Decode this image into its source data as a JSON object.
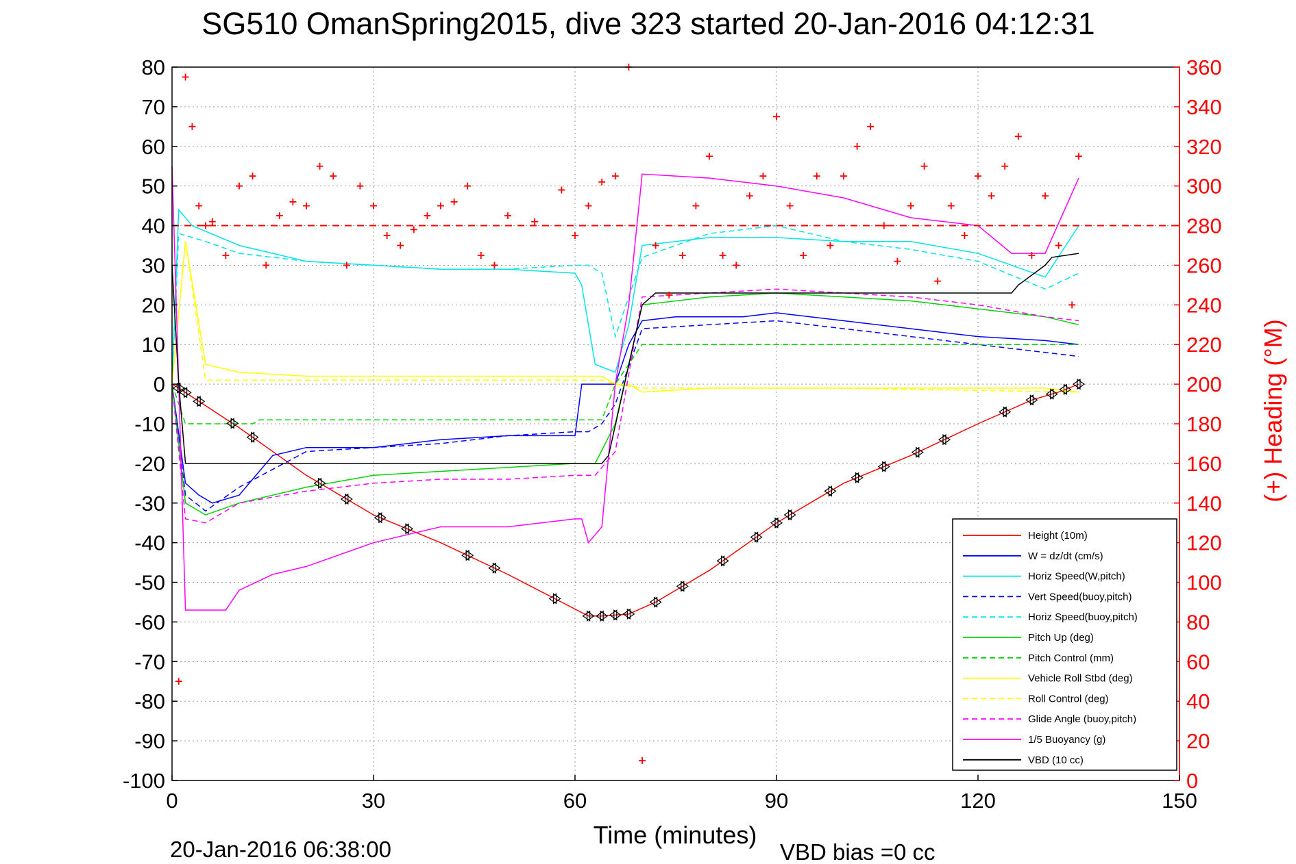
{
  "chart_data": {
    "type": "line",
    "title": "SG510 OmanSpring2015, dive 323 started 20-Jan-2016 04:12:31",
    "xlabel": "Time (minutes)",
    "ylabel": "",
    "y2label": "(+) Heading (°M)",
    "footer_left": "20-Jan-2016 06:38:00",
    "footer_right": "VBD bias =0 cc",
    "xlim": [
      0,
      150
    ],
    "ylim": [
      -100,
      80
    ],
    "y2lim": [
      0,
      360
    ],
    "xticks": [
      "0",
      "30",
      "60",
      "90",
      "120",
      "150"
    ],
    "yticks": [
      "80",
      "70",
      "60",
      "50",
      "40",
      "30",
      "20",
      "10",
      "0",
      "-10",
      "-20",
      "-30",
      "-40",
      "-50",
      "-60",
      "-70",
      "-80",
      "-90",
      "-100"
    ],
    "y2ticks": [
      "360",
      "340",
      "320",
      "300",
      "280",
      "260",
      "240",
      "220",
      "200",
      "180",
      "160",
      "140",
      "120",
      "100",
      "80",
      "60",
      "40",
      "20",
      "0"
    ],
    "grid": true,
    "legend_position": "bottom-right",
    "reference_heading": 280,
    "colors": {
      "red": "#ff0000",
      "blue": "#0000ff",
      "cyan": "#00e5e5",
      "green": "#00d400",
      "yellow": "#ffff00",
      "magenta": "#ff00ff",
      "black": "#000000"
    },
    "series": [
      {
        "name": "Height (10m)",
        "color": "#ff0000",
        "dash": "solid",
        "x": [
          0,
          1,
          10,
          20,
          30,
          40,
          50,
          58,
          62,
          64,
          68,
          72,
          80,
          90,
          100,
          110,
          120,
          128,
          132,
          135
        ],
        "y": [
          0,
          -1,
          -11,
          -23,
          -33,
          -40,
          -48,
          -55,
          -58.5,
          -58.5,
          -58,
          -55,
          -47,
          -35,
          -25,
          -18,
          -10,
          -4,
          -2,
          0
        ]
      },
      {
        "name": "W = dz/dt (cm/s)",
        "color": "#0000ff",
        "dash": "solid",
        "x": [
          0,
          2,
          4,
          6,
          10,
          15,
          20,
          30,
          40,
          50,
          60,
          61,
          63,
          65,
          66,
          68,
          70,
          75,
          85,
          90,
          100,
          110,
          120,
          130,
          135
        ],
        "y": [
          0,
          -25,
          -28,
          -30,
          -28,
          -18,
          -16,
          -16,
          -14,
          -13,
          -13,
          0,
          0,
          0,
          0,
          10,
          16,
          17,
          17,
          18,
          16,
          14,
          12,
          11,
          10
        ]
      },
      {
        "name": "Horiz Speed(W,pitch)",
        "color": "#00e5e5",
        "dash": "solid",
        "x": [
          0,
          1,
          3,
          10,
          20,
          30,
          40,
          50,
          60,
          61,
          63,
          66,
          68,
          70,
          80,
          90,
          100,
          110,
          120,
          125,
          130,
          135
        ],
        "y": [
          0,
          44,
          40,
          35,
          31,
          30,
          29,
          29,
          28,
          25,
          5,
          3,
          15,
          35,
          37,
          37,
          36,
          36,
          33,
          30,
          27,
          40
        ]
      },
      {
        "name": "Vert Speed(buoy,pitch)",
        "color": "#0000ff",
        "dash": "dashed",
        "x": [
          0,
          2,
          5,
          10,
          20,
          30,
          40,
          50,
          60,
          62,
          64,
          66,
          70,
          80,
          90,
          100,
          110,
          120,
          130,
          135
        ],
        "y": [
          0,
          -28,
          -32,
          -26,
          -17,
          -16,
          -15,
          -13,
          -12,
          -12,
          -10,
          -5,
          14,
          15,
          16,
          14,
          12,
          10,
          8,
          7
        ]
      },
      {
        "name": "Horiz Speed(buoy,pitch)",
        "color": "#00e5e5",
        "dash": "dashed",
        "x": [
          0,
          1,
          5,
          10,
          20,
          30,
          40,
          50,
          60,
          62,
          64,
          66,
          70,
          80,
          90,
          100,
          110,
          120,
          130,
          135
        ],
        "y": [
          0,
          38,
          36,
          33,
          31,
          30,
          29,
          29,
          30,
          30,
          28,
          12,
          32,
          38,
          40,
          36,
          34,
          31,
          24,
          28
        ]
      },
      {
        "name": "Pitch Up (deg)",
        "color": "#00d400",
        "dash": "solid",
        "x": [
          0,
          2,
          5,
          10,
          20,
          30,
          40,
          50,
          60,
          63,
          66,
          70,
          80,
          90,
          100,
          110,
          120,
          130,
          135
        ],
        "y": [
          0,
          -30,
          -33,
          -30,
          -26,
          -23,
          -22,
          -21,
          -20,
          -20,
          -10,
          20,
          22,
          23,
          22,
          21,
          19,
          17,
          15
        ]
      },
      {
        "name": "Pitch Control (mm)",
        "color": "#00d400",
        "dash": "dashed",
        "x": [
          0,
          2,
          12,
          13,
          62,
          64,
          66,
          70,
          135
        ],
        "y": [
          0,
          -10,
          -10,
          -9,
          -9,
          -9,
          0,
          10,
          10
        ]
      },
      {
        "name": "Vehicle Roll Stbd (deg)",
        "color": "#ffff00",
        "dash": "solid",
        "x": [
          0,
          2,
          5,
          10,
          20,
          30,
          40,
          50,
          60,
          64,
          66,
          68,
          70,
          80,
          90,
          100,
          110,
          120,
          130,
          135
        ],
        "y": [
          0,
          36,
          5,
          3,
          2,
          2,
          2,
          2,
          2,
          2,
          0,
          0,
          -2,
          -1,
          -1,
          -1,
          -1,
          -1,
          -1,
          -2
        ]
      },
      {
        "name": "Roll Control (deg)",
        "color": "#ffff00",
        "dash": "dashed",
        "x": [
          0,
          2,
          5,
          10,
          30,
          60,
          64,
          66,
          70,
          100,
          135
        ],
        "y": [
          0,
          36,
          1,
          1,
          1,
          1,
          1,
          0,
          -1,
          -1,
          -2
        ]
      },
      {
        "name": "Glide Angle (buoy,pitch)",
        "color": "#ff00ff",
        "dash": "dashed",
        "x": [
          0,
          2,
          5,
          10,
          20,
          30,
          40,
          50,
          60,
          63,
          66,
          70,
          80,
          90,
          100,
          110,
          120,
          130,
          135
        ],
        "y": [
          0,
          -34,
          -35,
          -30,
          -27,
          -25,
          -24,
          -24,
          -23,
          -23,
          -17,
          22,
          23,
          24,
          23,
          22,
          20,
          17,
          16
        ]
      },
      {
        "name": "1/5 Buoyancy (g)",
        "color": "#ff00ff",
        "dash": "solid",
        "x": [
          0,
          1,
          2,
          8,
          10,
          15,
          20,
          30,
          40,
          50,
          60,
          61,
          62,
          64,
          66,
          68,
          70,
          80,
          90,
          100,
          110,
          120,
          125,
          130,
          135
        ],
        "y": [
          55,
          0,
          -57,
          -57,
          -52,
          -48,
          -46,
          -40,
          -36,
          -36,
          -34,
          -34,
          -40,
          -36,
          0,
          20,
          53,
          52,
          50,
          47,
          42,
          40,
          33,
          33,
          52
        ]
      },
      {
        "name": "VBD (10 cc)",
        "color": "#000000",
        "dash": "solid",
        "x": [
          0,
          1,
          2,
          64,
          65,
          70,
          72,
          125,
          126,
          130,
          131,
          135
        ],
        "y": [
          30,
          0,
          -20,
          -20,
          -18,
          20,
          23,
          23,
          25,
          30,
          32,
          33
        ]
      },
      {
        "name": "",
        "color": "#ff0000",
        "dash": "dotted-plus",
        "axis": "right",
        "x": [
          1,
          2,
          3,
          4,
          5,
          6,
          8,
          10,
          12,
          14,
          16,
          18,
          20,
          22,
          24,
          26,
          28,
          30,
          32,
          34,
          36,
          38,
          40,
          42,
          44,
          46,
          48,
          50,
          54,
          58,
          60,
          62,
          64,
          66,
          68,
          70,
          72,
          74,
          76,
          78,
          80,
          82,
          84,
          86,
          88,
          90,
          92,
          94,
          96,
          98,
          100,
          102,
          104,
          106,
          108,
          110,
          112,
          114,
          116,
          118,
          120,
          122,
          124,
          126,
          128,
          130,
          132,
          134,
          135
        ],
        "y": [
          50,
          355,
          330,
          290,
          280,
          282,
          265,
          300,
          305,
          260,
          285,
          292,
          290,
          310,
          305,
          260,
          300,
          290,
          275,
          270,
          278,
          285,
          290,
          292,
          300,
          265,
          260,
          285,
          282,
          298,
          275,
          290,
          302,
          305,
          360,
          10,
          270,
          245,
          265,
          290,
          315,
          265,
          260,
          295,
          305,
          335,
          290,
          265,
          305,
          270,
          305,
          320,
          330,
          280,
          262,
          290,
          310,
          252,
          290,
          275,
          305,
          295,
          310,
          325,
          265,
          295,
          270,
          240,
          315
        ]
      }
    ],
    "legend": [
      {
        "label": "Height (10m)",
        "color": "#ff0000",
        "dash": "solid"
      },
      {
        "label": "W = dz/dt (cm/s)",
        "color": "#0000ff",
        "dash": "solid"
      },
      {
        "label": "Horiz Speed(W,pitch)",
        "color": "#00e5e5",
        "dash": "solid"
      },
      {
        "label": "Vert Speed(buoy,pitch)",
        "color": "#0000ff",
        "dash": "dashed"
      },
      {
        "label": "Horiz Speed(buoy,pitch)",
        "color": "#00e5e5",
        "dash": "dashed"
      },
      {
        "label": "Pitch Up (deg)",
        "color": "#00d400",
        "dash": "solid"
      },
      {
        "label": "Pitch Control (mm)",
        "color": "#00d400",
        "dash": "dashed"
      },
      {
        "label": "Vehicle Roll Stbd (deg)",
        "color": "#ffff00",
        "dash": "solid"
      },
      {
        "label": "Roll Control (deg)",
        "color": "#ffff00",
        "dash": "dashed"
      },
      {
        "label": "Glide Angle (buoy,pitch)",
        "color": "#ff00ff",
        "dash": "dashed"
      },
      {
        "label": "1/5 Buoyancy (g)",
        "color": "#ff00ff",
        "dash": "solid"
      },
      {
        "label": "VBD (10 cc)",
        "color": "#000000",
        "dash": "solid"
      }
    ],
    "height_markers_x": [
      1,
      2,
      4,
      9,
      12,
      22,
      26,
      31,
      35,
      44,
      48,
      57,
      62,
      64,
      66,
      68,
      72,
      76,
      82,
      87,
      90,
      92,
      98,
      102,
      106,
      111,
      115,
      124,
      128,
      131,
      133,
      135
    ]
  }
}
